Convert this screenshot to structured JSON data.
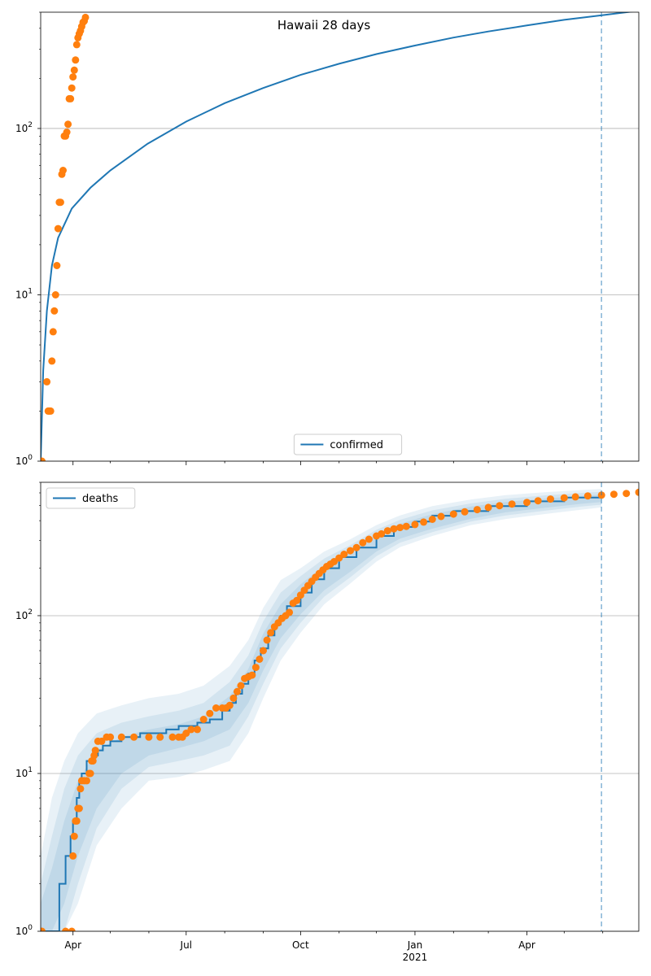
{
  "chart_data": [
    {
      "type": "line",
      "title": "Hawaii 28 days",
      "yscale": "log",
      "ylim": [
        1,
        500
      ],
      "xlim": [
        "2020-03-06",
        "2021-06-30"
      ],
      "grid": true,
      "legend": {
        "position": "bottom-center",
        "entries": [
          "confirmed"
        ]
      },
      "x_ticks": [],
      "y_ticks": [
        {
          "value": 1,
          "base": "10",
          "exp": "0"
        },
        {
          "value": 10,
          "base": "10",
          "exp": "1"
        },
        {
          "value": 100,
          "base": "10",
          "exp": "2"
        }
      ],
      "vline": {
        "x": "2021-05-31"
      },
      "series": [
        {
          "name": "confirmed",
          "kind": "line",
          "color": "#1f77b4",
          "x": [
            "2020-03-06",
            "2020-03-08",
            "2020-03-11",
            "2020-03-15",
            "2020-03-20",
            "2020-03-31",
            "2020-04-15",
            "2020-05-01",
            "2020-05-31",
            "2020-07-01",
            "2020-08-01",
            "2020-09-01",
            "2020-10-01",
            "2020-11-01",
            "2020-12-01",
            "2021-01-01",
            "2021-02-01",
            "2021-03-01",
            "2021-04-01",
            "2021-05-01",
            "2021-06-01",
            "2021-06-30"
          ],
          "y": [
            1,
            3.5,
            8,
            15,
            22,
            33,
            44,
            56,
            81,
            110,
            142,
            175,
            210,
            245,
            280,
            315,
            352,
            383,
            416,
            450,
            480,
            510
          ]
        },
        {
          "kind": "scatter",
          "color": "#ff7f0e",
          "x": [
            "2020-03-06",
            "2020-03-07",
            "2020-03-11",
            "2020-03-12",
            "2020-03-13",
            "2020-03-14",
            "2020-03-15",
            "2020-03-16",
            "2020-03-17",
            "2020-03-18",
            "2020-03-19",
            "2020-03-20",
            "2020-03-21",
            "2020-03-22",
            "2020-03-23",
            "2020-03-24",
            "2020-03-25",
            "2020-03-26",
            "2020-03-27",
            "2020-03-28",
            "2020-03-29",
            "2020-03-30",
            "2020-03-31",
            "2020-04-01",
            "2020-04-02",
            "2020-04-03",
            "2020-04-04",
            "2020-04-05",
            "2020-04-06",
            "2020-04-07",
            "2020-04-08",
            "2020-04-09",
            "2020-04-10",
            "2020-04-11"
          ],
          "y": [
            1,
            1,
            3,
            2,
            2,
            2,
            4,
            6,
            8,
            10,
            15,
            25,
            36,
            36,
            53,
            56,
            90,
            90,
            95,
            106,
            151,
            151,
            175,
            204,
            224,
            258,
            319,
            351,
            371,
            387,
            410,
            435,
            442,
            465
          ]
        }
      ]
    },
    {
      "type": "line",
      "yscale": "log",
      "ylim": [
        1,
        700
      ],
      "xlim": [
        "2020-03-06",
        "2021-06-30"
      ],
      "grid": true,
      "legend": {
        "position": "top-left",
        "entries": [
          "deaths"
        ]
      },
      "x_ticks": [
        {
          "label": "Apr",
          "x": "2020-04-01"
        },
        {
          "label": "Jul",
          "x": "2020-07-01"
        },
        {
          "label": "Oct",
          "x": "2020-10-01"
        },
        {
          "label": "Jan",
          "x": "2021-01-01",
          "sub": "2021"
        },
        {
          "label": "Apr",
          "x": "2021-04-01"
        }
      ],
      "y_ticks": [
        {
          "value": 1,
          "base": "10",
          "exp": "0"
        },
        {
          "value": 10,
          "base": "10",
          "exp": "1"
        },
        {
          "value": 100,
          "base": "10",
          "exp": "2"
        }
      ],
      "vline": {
        "x": "2021-05-31"
      },
      "bands": [
        {
          "x": [
            "2020-03-06",
            "2020-03-15",
            "2020-03-25",
            "2020-04-05",
            "2020-04-20",
            "2020-05-10",
            "2020-06-01",
            "2020-06-25",
            "2020-07-15",
            "2020-08-05",
            "2020-08-20",
            "2020-09-01",
            "2020-09-15",
            "2020-10-01",
            "2020-10-20",
            "2020-11-10",
            "2020-12-01",
            "2020-12-20",
            "2021-01-15",
            "2021-02-15",
            "2021-03-15",
            "2021-04-15",
            "2021-05-15",
            "2021-05-31"
          ],
          "lo": [
            1,
            1,
            1,
            1.5,
            3.5,
            6,
            9,
            9.5,
            10.5,
            12,
            18,
            30,
            52,
            78,
            118,
            160,
            220,
            272,
            320,
            375,
            410,
            440,
            470,
            485
          ],
          "hi": [
            3,
            7,
            12,
            18,
            24,
            27,
            30,
            32,
            36,
            48,
            70,
            112,
            168,
            200,
            255,
            305,
            375,
            432,
            495,
            545,
            580,
            605,
            625,
            635
          ]
        },
        {
          "x": [
            "2020-03-06",
            "2020-03-15",
            "2020-03-25",
            "2020-04-05",
            "2020-04-20",
            "2020-05-10",
            "2020-06-01",
            "2020-06-25",
            "2020-07-15",
            "2020-08-05",
            "2020-08-20",
            "2020-09-01",
            "2020-09-15",
            "2020-10-01",
            "2020-10-20",
            "2020-11-10",
            "2020-12-01",
            "2020-12-20",
            "2021-01-15",
            "2021-02-15",
            "2021-03-15",
            "2021-04-15",
            "2021-05-15",
            "2021-05-31"
          ],
          "lo": [
            1,
            1,
            1,
            2,
            4.5,
            8,
            11,
            12,
            13,
            15,
            23,
            37,
            62,
            90,
            132,
            175,
            238,
            290,
            338,
            395,
            432,
            462,
            492,
            505
          ],
          "hi": [
            2,
            4,
            8,
            13,
            18,
            21,
            23,
            25,
            28,
            38,
            56,
            92,
            140,
            178,
            230,
            280,
            350,
            405,
            465,
            515,
            550,
            578,
            600,
            610
          ]
        },
        {
          "x": [
            "2020-03-06",
            "2020-03-15",
            "2020-03-25",
            "2020-04-05",
            "2020-04-20",
            "2020-05-10",
            "2020-06-01",
            "2020-06-25",
            "2020-07-15",
            "2020-08-05",
            "2020-08-20",
            "2020-09-01",
            "2020-09-15",
            "2020-10-01",
            "2020-10-20",
            "2020-11-10",
            "2020-12-01",
            "2020-12-20",
            "2021-01-15",
            "2021-02-15",
            "2021-03-15",
            "2021-04-15",
            "2021-05-15",
            "2021-05-31"
          ],
          "lo": [
            1,
            1,
            1.5,
            3,
            6,
            10,
            13,
            14.5,
            16,
            19,
            28,
            45,
            72,
            102,
            145,
            190,
            255,
            308,
            356,
            412,
            452,
            482,
            512,
            525
          ],
          "hi": [
            1.5,
            2.5,
            5,
            9,
            14,
            17,
            19,
            20.5,
            23,
            31,
            46,
            77,
            118,
            158,
            208,
            258,
            328,
            382,
            440,
            492,
            525,
            552,
            575,
            585
          ]
        }
      ],
      "series": [
        {
          "name": "deaths",
          "kind": "step",
          "color": "#1f77b4",
          "x": [
            "2020-03-06",
            "2020-03-19",
            "2020-03-21",
            "2020-03-24",
            "2020-03-26",
            "2020-03-28",
            "2020-03-30",
            "2020-04-01",
            "2020-04-04",
            "2020-04-06",
            "2020-04-08",
            "2020-04-12",
            "2020-04-16",
            "2020-04-21",
            "2020-04-25",
            "2020-05-01",
            "2020-05-10",
            "2020-05-25",
            "2020-06-15",
            "2020-06-25",
            "2020-07-10",
            "2020-07-20",
            "2020-07-30",
            "2020-08-05",
            "2020-08-10",
            "2020-08-15",
            "2020-08-20",
            "2020-08-25",
            "2020-08-30",
            "2020-09-05",
            "2020-09-10",
            "2020-09-15",
            "2020-09-20",
            "2020-10-01",
            "2020-10-10",
            "2020-10-20",
            "2020-11-01",
            "2020-11-15",
            "2020-12-01",
            "2020-12-15",
            "2021-01-01",
            "2021-01-15",
            "2021-02-01",
            "2021-03-01",
            "2021-04-01",
            "2021-05-01",
            "2021-05-31"
          ],
          "y": [
            1,
            1,
            2,
            2,
            3,
            3,
            4,
            5,
            7,
            9,
            10,
            12,
            13,
            14,
            15,
            16,
            17,
            18,
            19,
            20,
            21,
            22,
            25,
            28,
            32,
            37,
            43,
            52,
            62,
            75,
            88,
            100,
            115,
            140,
            170,
            200,
            235,
            270,
            320,
            365,
            395,
            430,
            460,
            495,
            530,
            560,
            585
          ]
        },
        {
          "kind": "scatter",
          "color": "#ff7f0e",
          "x": [
            "2020-03-06",
            "2020-03-07",
            "2020-03-26",
            "2020-03-31",
            "2020-04-01",
            "2020-04-02",
            "2020-04-03",
            "2020-04-04",
            "2020-04-05",
            "2020-04-06",
            "2020-04-07",
            "2020-04-08",
            "2020-04-10",
            "2020-04-12",
            "2020-04-14",
            "2020-04-15",
            "2020-04-16",
            "2020-04-17",
            "2020-04-18",
            "2020-04-19",
            "2020-04-21",
            "2020-04-24",
            "2020-04-28",
            "2020-05-01",
            "2020-05-10",
            "2020-05-20",
            "2020-06-01",
            "2020-06-10",
            "2020-06-20",
            "2020-06-25",
            "2020-06-28",
            "2020-07-01",
            "2020-07-05",
            "2020-07-10",
            "2020-07-15",
            "2020-07-20",
            "2020-07-25",
            "2020-07-30",
            "2020-08-02",
            "2020-08-05",
            "2020-08-08",
            "2020-08-11",
            "2020-08-14",
            "2020-08-17",
            "2020-08-20",
            "2020-08-23",
            "2020-08-26",
            "2020-08-29",
            "2020-09-01",
            "2020-09-04",
            "2020-09-07",
            "2020-09-10",
            "2020-09-13",
            "2020-09-16",
            "2020-09-19",
            "2020-09-22",
            "2020-09-25",
            "2020-09-28",
            "2020-10-01",
            "2020-10-04",
            "2020-10-07",
            "2020-10-10",
            "2020-10-13",
            "2020-10-16",
            "2020-10-19",
            "2020-10-22",
            "2020-10-25",
            "2020-10-28",
            "2020-11-01",
            "2020-11-05",
            "2020-11-10",
            "2020-11-15",
            "2020-11-20",
            "2020-11-25",
            "2020-12-01",
            "2020-12-05",
            "2020-12-10",
            "2020-12-15",
            "2020-12-20",
            "2020-12-25",
            "2021-01-01",
            "2021-01-08",
            "2021-01-15",
            "2021-01-22",
            "2021-02-01",
            "2021-02-10",
            "2021-02-20",
            "2021-03-01",
            "2021-03-10",
            "2021-03-20",
            "2021-04-01",
            "2021-04-10",
            "2021-04-20",
            "2021-05-01",
            "2021-05-10",
            "2021-05-20",
            "2021-05-31",
            "2021-06-10",
            "2021-06-20",
            "2021-06-30"
          ],
          "y": [
            1,
            1,
            1,
            1,
            3,
            4,
            5,
            5,
            6,
            6,
            8,
            9,
            9,
            9,
            10,
            10,
            12,
            12,
            13,
            14,
            16,
            16,
            17,
            17,
            17,
            17,
            17,
            17,
            17,
            17,
            17,
            18,
            19,
            19,
            22,
            24,
            26,
            26,
            26,
            27,
            30,
            33,
            36,
            40,
            41,
            42,
            47,
            53,
            60,
            70,
            78,
            85,
            90,
            96,
            100,
            105,
            120,
            125,
            135,
            145,
            155,
            165,
            175,
            185,
            195,
            205,
            212,
            220,
            232,
            245,
            258,
            270,
            290,
            305,
            320,
            330,
            345,
            355,
            362,
            368,
            378,
            392,
            408,
            425,
            440,
            455,
            470,
            485,
            498,
            510,
            522,
            535,
            548,
            558,
            566,
            574,
            580,
            588,
            595,
            605
          ]
        }
      ]
    }
  ]
}
